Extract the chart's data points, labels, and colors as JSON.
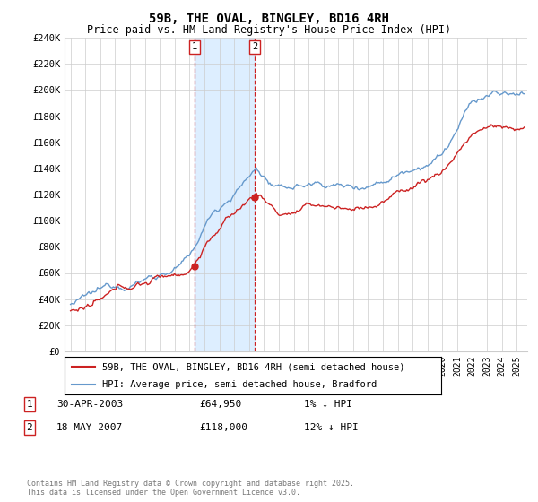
{
  "title": "59B, THE OVAL, BINGLEY, BD16 4RH",
  "subtitle": "Price paid vs. HM Land Registry's House Price Index (HPI)",
  "legend_line1": "59B, THE OVAL, BINGLEY, BD16 4RH (semi-detached house)",
  "legend_line2": "HPI: Average price, semi-detached house, Bradford",
  "transaction1_label": "1",
  "transaction1_date": "30-APR-2003",
  "transaction1_price": "£64,950",
  "transaction1_hpi": "1% ↓ HPI",
  "transaction1_year": 2003.33,
  "transaction1_value": 64950,
  "transaction2_label": "2",
  "transaction2_date": "18-MAY-2007",
  "transaction2_price": "£118,000",
  "transaction2_hpi": "12% ↓ HPI",
  "transaction2_year": 2007.38,
  "transaction2_value": 118000,
  "footnote": "Contains HM Land Registry data © Crown copyright and database right 2025.\nThis data is licensed under the Open Government Licence v3.0.",
  "ylim": [
    0,
    240000
  ],
  "yticks": [
    0,
    20000,
    40000,
    60000,
    80000,
    100000,
    120000,
    140000,
    160000,
    180000,
    200000,
    220000,
    240000
  ],
  "hpi_color": "#6699cc",
  "price_color": "#cc2222",
  "shade_color": "#ddeeff",
  "background_color": "#ffffff",
  "grid_color": "#cccccc"
}
